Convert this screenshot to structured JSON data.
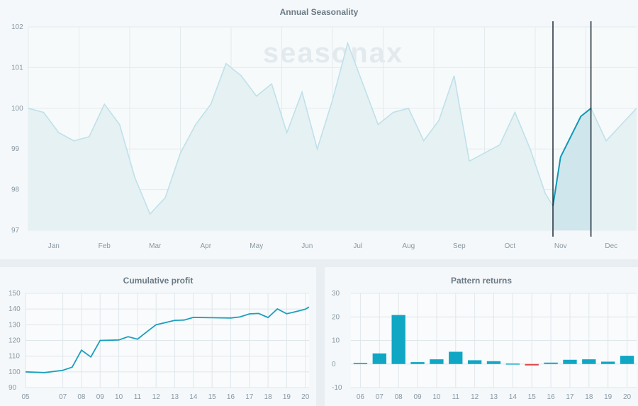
{
  "watermark": "seasonax",
  "chart_data": [
    {
      "id": "annual",
      "type": "line",
      "title": "Annual Seasonality",
      "ylim": [
        97,
        102
      ],
      "yticks": [
        97,
        98,
        99,
        100,
        101,
        102
      ],
      "months": [
        "Jan",
        "Feb",
        "Mar",
        "Apr",
        "May",
        "Jun",
        "Jul",
        "Aug",
        "Sep",
        "Oct",
        "Nov",
        "Dec"
      ],
      "series": [
        {
          "x": [
            0,
            0.3,
            0.6,
            0.9,
            1.2,
            1.5,
            1.8,
            2.1,
            2.4,
            2.7,
            3.0,
            3.3,
            3.6,
            3.9,
            4.2,
            4.5,
            4.8,
            5.1,
            5.4,
            5.7,
            6.0,
            6.3,
            6.6,
            6.9,
            7.2,
            7.5,
            7.8,
            8.1,
            8.4,
            8.7,
            9.0,
            9.3,
            9.6,
            9.9,
            10.2,
            10.35,
            10.5,
            10.7,
            10.9,
            11.1,
            11.4,
            11.7,
            12.0
          ],
          "y": [
            100.0,
            99.9,
            99.4,
            99.2,
            99.3,
            100.1,
            99.6,
            98.3,
            97.4,
            97.8,
            98.9,
            99.6,
            100.1,
            101.1,
            100.8,
            100.3,
            100.6,
            99.4,
            100.4,
            99.0,
            100.2,
            101.6,
            100.6,
            99.6,
            99.9,
            100.0,
            99.2,
            99.7,
            100.8,
            98.7,
            98.9,
            99.1,
            99.9,
            99.0,
            97.9,
            97.6,
            98.8,
            99.3,
            99.8,
            100.0,
            99.2,
            99.6,
            100.0
          ]
        }
      ],
      "highlight": {
        "x": [
          10.35,
          10.5,
          10.7,
          10.9,
          11.1
        ],
        "y": [
          97.6,
          98.8,
          99.3,
          99.8,
          100.0
        ]
      },
      "vlines": [
        10.35,
        11.1
      ]
    },
    {
      "id": "cumulative",
      "type": "line",
      "title": "Cumulative profit",
      "categories": [
        "05",
        "07",
        "08",
        "09",
        "10",
        "11",
        "12",
        "13",
        "14",
        "15",
        "16",
        "17",
        "18",
        "19",
        "20"
      ],
      "ylim": [
        90,
        150
      ],
      "yticks": [
        90,
        100,
        110,
        120,
        130,
        140,
        150
      ],
      "series": [
        {
          "x": [
            2005,
            2006,
            2007,
            2007.5,
            2008,
            2008.5,
            2009,
            2010,
            2010.5,
            2011,
            2011.5,
            2012,
            2012.5,
            2013,
            2013.5,
            2014,
            2015,
            2016,
            2016.5,
            2017,
            2017.5,
            2018,
            2018.5,
            2019,
            2019.5,
            2020,
            2020.2
          ],
          "y": [
            100,
            99.5,
            101,
            103,
            113.8,
            109.5,
            120,
            120.3,
            122.4,
            120.8,
            125.5,
            130,
            131.4,
            132.8,
            133,
            134.7,
            134.5,
            134.3,
            135,
            136.9,
            137.2,
            134.6,
            140.1,
            137,
            138.4,
            139.9,
            141.3
          ]
        }
      ]
    },
    {
      "id": "pattern",
      "type": "bar",
      "title": "Pattern returns",
      "categories": [
        "06",
        "07",
        "08",
        "09",
        "10",
        "11",
        "12",
        "13",
        "14",
        "15",
        "16",
        "17",
        "18",
        "19",
        "20"
      ],
      "values": [
        0.5,
        4.5,
        20.8,
        0.8,
        2.0,
        5.2,
        1.6,
        1.2,
        0.2,
        -0.6,
        0.6,
        1.8,
        2.0,
        1.0,
        3.5
      ],
      "ylim": [
        -10,
        30
      ],
      "yticks": [
        -10,
        0,
        10,
        20,
        30
      ],
      "colors": {
        "positive": "#0fa7c4",
        "negative": "#e04545"
      }
    }
  ]
}
